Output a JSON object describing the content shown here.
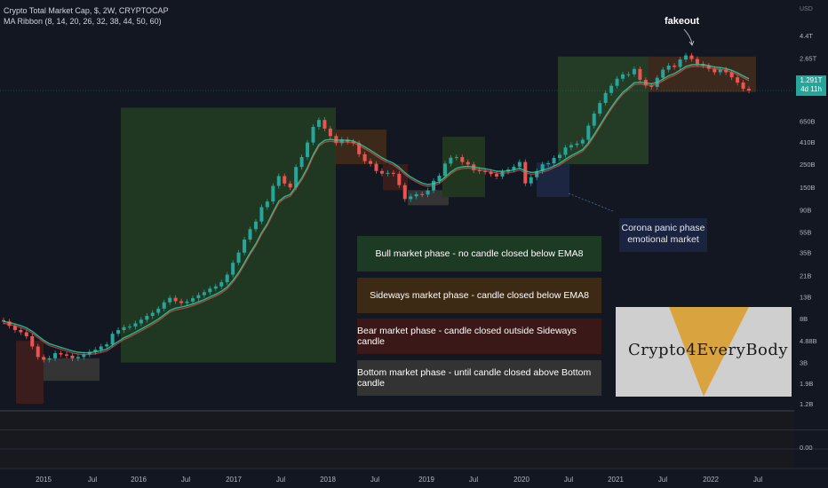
{
  "header": {
    "title": "Crypto Total Market Cap, $, 2W, CRYPTOCAP",
    "indicator": "MA Ribbon (8, 14, 20, 26, 32, 38, 44, 50, 60)"
  },
  "colors": {
    "background": "#131722",
    "bull": "#26a69a",
    "bear": "#ef5350",
    "ema": "#26a69a",
    "bull_zone": "#2e4a2e",
    "sideways_zone": "#4a3320",
    "bear_zone": "#4a2424",
    "bottom_zone": "#3a3a3a",
    "corona_zone": "#1e2a48"
  },
  "chart_data": {
    "type": "candlestick",
    "title": "Crypto Total Market Cap, $, 2W, CRYPTOCAP",
    "y_scale": "log",
    "y_unit": "USD",
    "y_ticks": [
      "4.4T",
      "2.65T",
      "1.65T",
      "650B",
      "410B",
      "250B",
      "150B",
      "90B",
      "55B",
      "35B",
      "21B",
      "13B",
      "8B",
      "4.88B",
      "3B",
      "1.9B",
      "1.2B"
    ],
    "x_ticks": [
      "2015",
      "Jul",
      "2016",
      "Jul",
      "2017",
      "Jul",
      "2018",
      "Jul",
      "2019",
      "Jul",
      "2020",
      "Jul",
      "2021",
      "Jul",
      "2022",
      "Jul"
    ],
    "last_price": "1.291T",
    "countdown": "4d 11h",
    "lower_pane_ticks": [
      "0.00"
    ],
    "series": [
      {
        "values_B": [
          7.5,
          6.8,
          6.2,
          5.9,
          5.4,
          4.3,
          3.4,
          3.2,
          3.3,
          3.7,
          3.6,
          3.5,
          3.3,
          3.4,
          3.6,
          3.8,
          4.0,
          4.3,
          4.5,
          5.7,
          6.2,
          6.6,
          6.7,
          7.2,
          7.8,
          8.5,
          9.1,
          10.0,
          11.5,
          12.7,
          11.8,
          11.3,
          11.7,
          12.6,
          13.5,
          14.4,
          15.6,
          16.4,
          18.0,
          21.3,
          27.8,
          34.8,
          46.6,
          58.7,
          69.6,
          95.9,
          108.7,
          153.9,
          191.6,
          162.5,
          148.9,
          234.9,
          292.9,
          404.8,
          574.1,
          669.2,
          552.7,
          468.0,
          399.3,
          432.5,
          412.7,
          398.4,
          311.9,
          267.8,
          251.9,
          214.6,
          202.7,
          206.0,
          201.7,
          156.7,
          114.9,
          121.9,
          128.1,
          127.0,
          139.2,
          172.1,
          193.2,
          253.3,
          288.6,
          292.6,
          262.4,
          248.5,
          218.2,
          213.9,
          210.9,
          200.5,
          190.1,
          211.4,
          221.4,
          236.1,
          262.4,
          163.0,
          186.8,
          214.4,
          249.3,
          255.0,
          287.1,
          308.0,
          362.6,
          382.8,
          396.3,
          430.5,
          589.5,
          771.7,
          977.6,
          1222.3,
          1434.1,
          1678.6,
          1848.1,
          1852.1,
          2084.6,
          1637.6,
          1441.7,
          1401.5,
          1714.8,
          2054.3,
          2247.4,
          2184.6,
          2576.0,
          2818.6,
          2604.2,
          2331.1,
          2247.6,
          2093.4,
          1937.2,
          2058.5,
          1939.6,
          1732.5,
          1540.3,
          1341.6,
          1291.0
        ]
      }
    ],
    "annotations": [
      "fakeout"
    ]
  },
  "legend": {
    "bull": "Bull market phase - no candle closed below EMA8",
    "sideways": "Sideways market phase - candle closed below EMA8",
    "bear": "Bear market phase - candle closed outside Sideways candle",
    "bottom": "Bottom market phase - until candle closed above Bottom candle"
  },
  "annotation_note": {
    "line1": "Corona panic phase",
    "line2": "emotional market"
  },
  "fakeout": "fakeout",
  "logo_text": "Crypto4EveryBody",
  "axis_currency": "USD"
}
